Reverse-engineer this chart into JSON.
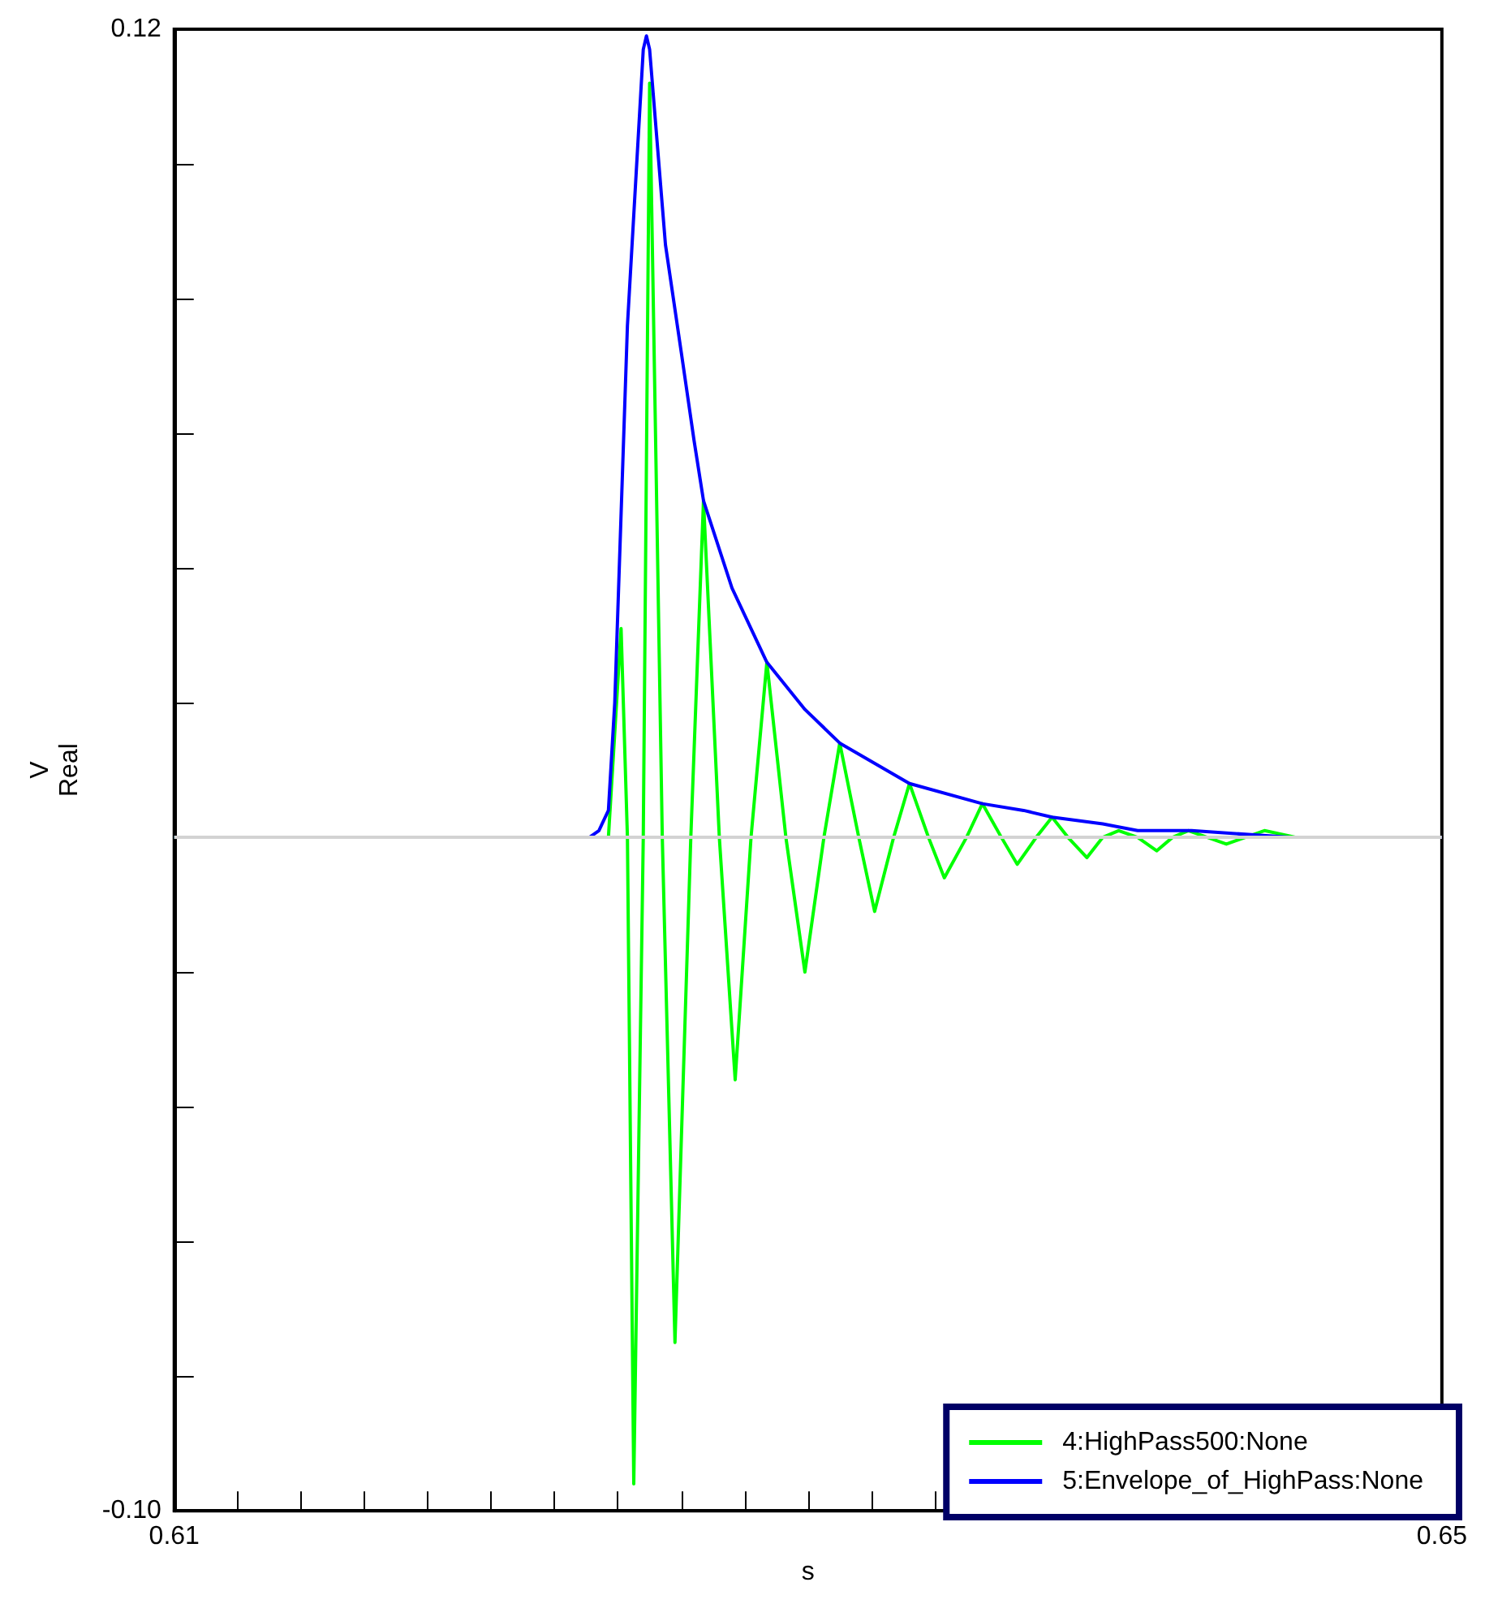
{
  "chart_data": {
    "type": "line",
    "xlabel": "s",
    "ylabel": "V\nReal",
    "xlim": [
      0.61,
      0.65
    ],
    "ylim": [
      -0.1,
      0.12
    ],
    "xticks": [
      {
        "value": 0.61,
        "label": "0.61"
      },
      {
        "value": 0.612,
        "label": null
      },
      {
        "value": 0.614,
        "label": null
      },
      {
        "value": 0.616,
        "label": null
      },
      {
        "value": 0.618,
        "label": null
      },
      {
        "value": 0.62,
        "label": null
      },
      {
        "value": 0.622,
        "label": null
      },
      {
        "value": 0.624,
        "label": null
      },
      {
        "value": 0.626,
        "label": null
      },
      {
        "value": 0.628,
        "label": null
      },
      {
        "value": 0.63,
        "label": null
      },
      {
        "value": 0.632,
        "label": null
      },
      {
        "value": 0.634,
        "label": null
      },
      {
        "value": 0.636,
        "label": null
      },
      {
        "value": 0.638,
        "label": null
      },
      {
        "value": 0.64,
        "label": null
      },
      {
        "value": 0.642,
        "label": null
      },
      {
        "value": 0.644,
        "label": null
      },
      {
        "value": 0.646,
        "label": null
      },
      {
        "value": 0.648,
        "label": null
      },
      {
        "value": 0.65,
        "label": "0.65"
      }
    ],
    "yticks": [
      {
        "value": 0.12,
        "label": "0.12"
      },
      {
        "value": 0.1,
        "label": null
      },
      {
        "value": 0.08,
        "label": null
      },
      {
        "value": 0.06,
        "label": null
      },
      {
        "value": 0.04,
        "label": null
      },
      {
        "value": 0.02,
        "label": null
      },
      {
        "value": 0,
        "label": null
      },
      {
        "value": -0.02,
        "label": null
      },
      {
        "value": -0.04,
        "label": null
      },
      {
        "value": -0.06,
        "label": null
      },
      {
        "value": -0.08,
        "label": null
      },
      {
        "value": -0.1,
        "label": "-0.10"
      }
    ],
    "grid": false,
    "legend": "bottom right",
    "marker": "none",
    "line_style": "solid",
    "ref_lines": [
      {
        "axis": "y",
        "value": 0,
        "label": null,
        "color": "#d3d3d3"
      }
    ],
    "series": [
      {
        "name": "4:HighPass500:None",
        "color": "#00ff00",
        "x": [
          0.61,
          0.6237,
          0.6241,
          0.6243,
          0.6245,
          0.6248,
          0.625,
          0.6254,
          0.6258,
          0.6263,
          0.6267,
          0.6272,
          0.6277,
          0.6282,
          0.6287,
          0.6293,
          0.6299,
          0.6305,
          0.631,
          0.6316,
          0.6321,
          0.6327,
          0.6332,
          0.6338,
          0.6343,
          0.635,
          0.6355,
          0.6361,
          0.6366,
          0.6372,
          0.6377,
          0.6382,
          0.6388,
          0.6393,
          0.6398,
          0.6404,
          0.641,
          0.6415,
          0.642,
          0.6426,
          0.6432,
          0.6438,
          0.6444,
          0.6454,
          0.65
        ],
        "values": [
          0,
          0,
          0.031,
          0,
          -0.096,
          0,
          0.112,
          0,
          -0.075,
          0,
          0.05,
          0,
          -0.036,
          0,
          0.026,
          0,
          -0.02,
          0,
          0.014,
          0,
          -0.011,
          0,
          0.008,
          0,
          -0.006,
          0,
          0.005,
          0,
          -0.004,
          0,
          0.003,
          0,
          -0.003,
          0,
          0.001,
          0,
          -0.002,
          0,
          0.001,
          0,
          -0.001,
          0,
          0.001,
          0,
          0
        ]
      },
      {
        "name": "5:Envelope_of_HighPass:None",
        "color": "#0000ff",
        "x": [
          0.61,
          0.6231,
          0.6234,
          0.6237,
          0.6239,
          0.6243,
          0.6248,
          0.6249,
          0.625,
          0.6255,
          0.626,
          0.6264,
          0.6267,
          0.6276,
          0.6283,
          0.6287,
          0.6299,
          0.631,
          0.6332,
          0.6355,
          0.6368,
          0.6377,
          0.6393,
          0.6404,
          0.6421,
          0.6452,
          0.65
        ],
        "values": [
          0,
          0,
          0.001,
          0.004,
          0.02,
          0.076,
          0.117,
          0.119,
          0.117,
          0.088,
          0.072,
          0.059,
          0.05,
          0.037,
          0.03,
          0.026,
          0.019,
          0.014,
          0.008,
          0.005,
          0.004,
          0.003,
          0.002,
          0.001,
          0.001,
          0,
          0
        ]
      }
    ]
  }
}
